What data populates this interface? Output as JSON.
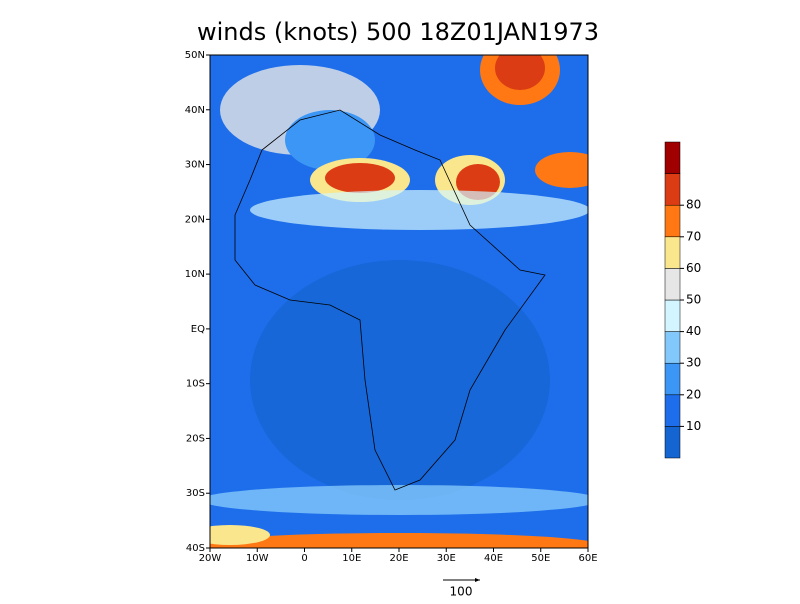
{
  "title": "winds (knots) 500 18Z01JAN1973",
  "map": {
    "xlim": [
      -20,
      60
    ],
    "ylim": [
      -40,
      50
    ],
    "xticks": [
      {
        "value": -20,
        "label": "20W"
      },
      {
        "value": -10,
        "label": "10W"
      },
      0,
      {
        "value": 10,
        "label": "10E"
      },
      {
        "value": 20,
        "label": "20E"
      },
      {
        "value": 30,
        "label": "30E"
      },
      {
        "value": 40,
        "label": "40E"
      },
      {
        "value": 50,
        "label": "50E"
      },
      {
        "value": 60,
        "label": "60E"
      }
    ],
    "yticks": [
      {
        "value": -40,
        "label": "40S"
      },
      {
        "value": -30,
        "label": "30S"
      },
      {
        "value": -20,
        "label": "20S"
      },
      {
        "value": -10,
        "label": "10S"
      },
      {
        "value": 0,
        "label": "EQ"
      },
      {
        "value": 10,
        "label": "10N"
      },
      {
        "value": 20,
        "label": "20N"
      },
      {
        "value": 30,
        "label": "30N"
      },
      {
        "value": 40,
        "label": "40N"
      },
      {
        "value": 50,
        "label": "50N"
      }
    ]
  },
  "colorbar": {
    "levels": [
      10,
      20,
      30,
      40,
      50,
      60,
      70,
      80
    ],
    "colors": [
      "#1464d2",
      "#1e6eeb",
      "#3c96f5",
      "#82c8fa",
      "#d2f5ff",
      "#e6e6e6",
      "#fae68c",
      "#ff7814",
      "#dc3c14",
      "#a00000"
    ]
  },
  "reference_vector": 100
}
